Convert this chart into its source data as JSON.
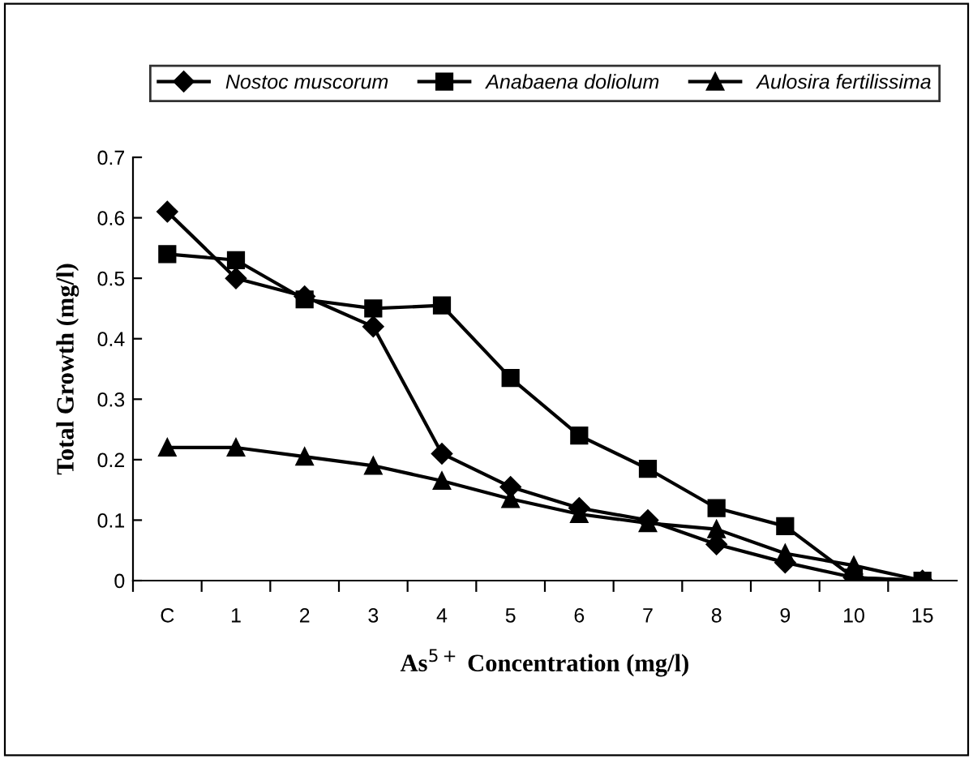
{
  "chart_data": {
    "type": "line",
    "xlabel": "As$^{5+}$ Concentration (mg/l)",
    "ylabel": "Total Growth (mg/l)",
    "categories": [
      "C",
      "1",
      "2",
      "3",
      "4",
      "5",
      "6",
      "7",
      "8",
      "9",
      "10",
      "15"
    ],
    "series": [
      {
        "name": "Nostoc muscorum",
        "color": "#000000",
        "marker": "diamond",
        "values": [
          0.61,
          0.5,
          0.47,
          0.42,
          0.21,
          0.155,
          0.12,
          0.1,
          0.06,
          0.03,
          0.005,
          0
        ]
      },
      {
        "name": "Anabaena doliolum",
        "color": "#000000",
        "marker": "square",
        "values": [
          0.54,
          0.53,
          0.465,
          0.45,
          0.455,
          0.335,
          0.24,
          0.185,
          0.12,
          0.09,
          0.005,
          0
        ]
      },
      {
        "name": "Aulosira fertilissima",
        "color": "#000000",
        "marker": "triangle",
        "values": [
          0.22,
          0.22,
          0.205,
          0.19,
          0.165,
          0.135,
          0.11,
          0.095,
          0.085,
          0.045,
          0.025,
          0
        ]
      }
    ],
    "ylim": [
      0,
      0.7
    ],
    "yticks": [
      {
        "value": 0,
        "label": "0"
      },
      0.1,
      0.2,
      0.3,
      0.4,
      0.5,
      0.6,
      0.7
    ],
    "grid": false,
    "legend": "top",
    "line_style": "solid"
  }
}
